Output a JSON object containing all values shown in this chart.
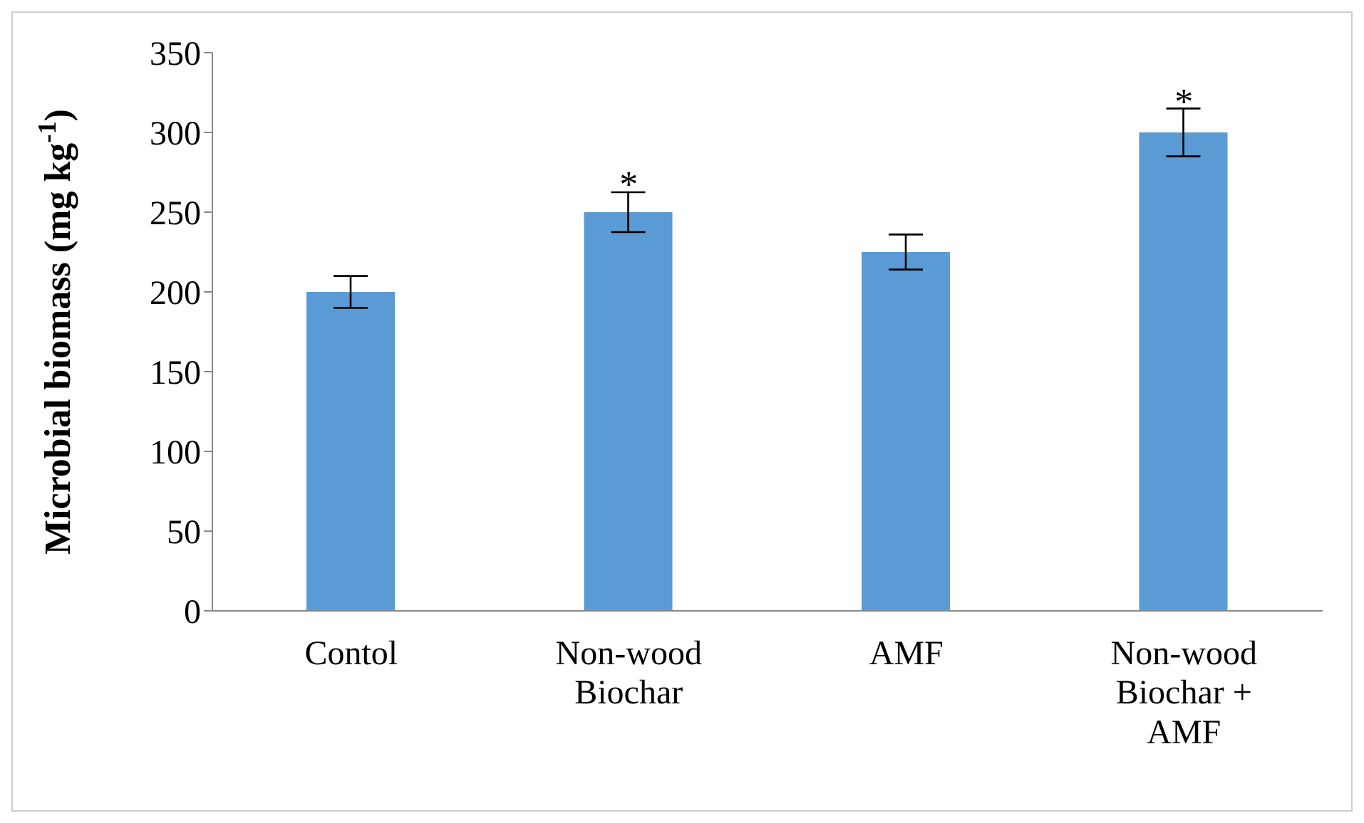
{
  "chart_data": {
    "type": "bar",
    "ylabel": "Microbial biomass (mg kg$^{-1}$)",
    "categories": [
      "Contol",
      "Non-wood Biochar",
      "AMF",
      "Non-wood Biochar + AMF"
    ],
    "values": [
      200,
      250,
      225,
      300
    ],
    "errors": [
      10,
      12.5,
      11,
      15
    ],
    "color": "#5b9bd5",
    "ylim": [
      0,
      350
    ],
    "yticks": [
      0,
      50,
      100,
      150,
      200,
      250,
      300,
      350
    ],
    "annotations": [
      {
        "text": "*",
        "x": "Non-wood Biochar",
        "y": 265
      },
      {
        "text": "*",
        "x": "Non-wood Biochar + AMF",
        "y": 317
      }
    ]
  }
}
